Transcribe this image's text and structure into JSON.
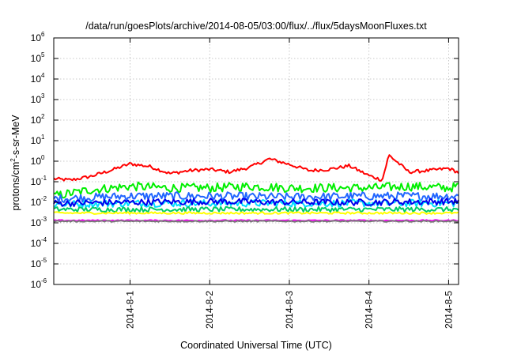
{
  "chart_data": {
    "type": "line",
    "title": "/data/run/goesPlots/archive/2014-08-05/03:00/flux/../flux/5daysMoonFluxes.txt",
    "xlabel": "Coordinated Universal Time (UTC)",
    "ylabel_parts": [
      "protons/cm",
      "2",
      "-s-sr-MeV"
    ],
    "yscale": "log",
    "ylim": [
      1e-06,
      1000000.0
    ],
    "y_ticks": [
      {
        "base": "10",
        "exp": "-6",
        "value": 1e-06
      },
      {
        "base": "10",
        "exp": "-5",
        "value": 1e-05
      },
      {
        "base": "10",
        "exp": "-4",
        "value": 0.0001
      },
      {
        "base": "10",
        "exp": "-3",
        "value": 0.001
      },
      {
        "base": "10",
        "exp": "-2",
        "value": 0.01
      },
      {
        "base": "10",
        "exp": "-1",
        "value": 0.1
      },
      {
        "base": "10",
        "exp": "0",
        "value": 1
      },
      {
        "base": "10",
        "exp": "1",
        "value": 10
      },
      {
        "base": "10",
        "exp": "2",
        "value": 100
      },
      {
        "base": "10",
        "exp": "3",
        "value": 1000
      },
      {
        "base": "10",
        "exp": "4",
        "value": 10000
      },
      {
        "base": "10",
        "exp": "5",
        "value": 100000
      },
      {
        "base": "10",
        "exp": "6",
        "value": 1000000
      }
    ],
    "xlim": [
      "2014-07-31T01:00",
      "2014-08-05T03:00"
    ],
    "x_ticks": [
      {
        "label": "2014-8-1",
        "value": "2014-08-01T00:00"
      },
      {
        "label": "2014-8-2",
        "value": "2014-08-02T00:00"
      },
      {
        "label": "2014-8-3",
        "value": "2014-08-03T00:00"
      },
      {
        "label": "2014-8-4",
        "value": "2014-08-04T00:00"
      },
      {
        "label": "2014-8-5",
        "value": "2014-08-05T00:00"
      }
    ],
    "grid": true,
    "series": [
      {
        "color": "#ff0000",
        "points": [
          [
            "2014-07-31T01:00",
            0.14
          ],
          [
            "2014-07-31T06:00",
            0.12
          ],
          [
            "2014-07-31T12:00",
            0.18
          ],
          [
            "2014-07-31T18:00",
            0.35
          ],
          [
            "2014-08-01T00:00",
            0.75
          ],
          [
            "2014-08-01T06:00",
            0.55
          ],
          [
            "2014-08-01T12:00",
            0.25
          ],
          [
            "2014-08-01T18:00",
            0.35
          ],
          [
            "2014-08-02T00:00",
            0.4
          ],
          [
            "2014-08-02T06:00",
            0.3
          ],
          [
            "2014-08-02T12:00",
            0.5
          ],
          [
            "2014-08-02T18:00",
            1.3
          ],
          [
            "2014-08-03T00:00",
            0.7
          ],
          [
            "2014-08-03T06:00",
            0.35
          ],
          [
            "2014-08-03T12:00",
            0.4
          ],
          [
            "2014-08-03T18:00",
            0.6
          ],
          [
            "2014-08-04T00:00",
            0.2
          ],
          [
            "2014-08-04T04:00",
            0.12
          ],
          [
            "2014-08-04T06:00",
            2.0
          ],
          [
            "2014-08-04T12:00",
            0.3
          ],
          [
            "2014-08-04T18:00",
            0.35
          ],
          [
            "2014-08-05T00:00",
            0.45
          ],
          [
            "2014-08-05T03:00",
            0.28
          ]
        ]
      },
      {
        "color": "#00ee00",
        "points": [
          [
            "2014-07-31T01:00",
            0.02
          ],
          [
            "2014-07-31T12:00",
            0.04
          ],
          [
            "2014-08-01T00:00",
            0.06
          ],
          [
            "2014-08-01T12:00",
            0.05
          ],
          [
            "2014-08-02T00:00",
            0.05
          ],
          [
            "2014-08-02T12:00",
            0.06
          ],
          [
            "2014-08-03T00:00",
            0.05
          ],
          [
            "2014-08-03T12:00",
            0.05
          ],
          [
            "2014-08-04T00:00",
            0.05
          ],
          [
            "2014-08-04T12:00",
            0.06
          ],
          [
            "2014-08-05T00:00",
            0.05
          ],
          [
            "2014-08-05T03:00",
            0.06
          ]
        ]
      },
      {
        "color": "#2266ff",
        "points": [
          [
            "2014-07-31T01:00",
            0.015
          ],
          [
            "2014-08-01T00:00",
            0.02
          ],
          [
            "2014-08-02T00:00",
            0.02
          ],
          [
            "2014-08-03T00:00",
            0.018
          ],
          [
            "2014-08-04T00:00",
            0.02
          ],
          [
            "2014-08-05T00:00",
            0.02
          ],
          [
            "2014-08-05T03:00",
            0.02
          ]
        ]
      },
      {
        "color": "#00ddff",
        "points": [
          [
            "2014-07-31T01:00",
            0.008
          ],
          [
            "2014-08-01T00:00",
            0.009
          ],
          [
            "2014-08-02T00:00",
            0.009
          ],
          [
            "2014-08-03T00:00",
            0.009
          ],
          [
            "2014-08-04T00:00",
            0.009
          ],
          [
            "2014-08-05T00:00",
            0.009
          ],
          [
            "2014-08-05T03:00",
            0.009
          ]
        ]
      },
      {
        "color": "#0000ee",
        "points": [
          [
            "2014-07-31T01:00",
            0.009
          ],
          [
            "2014-08-01T00:00",
            0.01
          ],
          [
            "2014-08-02T00:00",
            0.011
          ],
          [
            "2014-08-03T00:00",
            0.01
          ],
          [
            "2014-08-04T00:00",
            0.01
          ],
          [
            "2014-08-05T00:00",
            0.011
          ],
          [
            "2014-08-05T03:00",
            0.011
          ]
        ]
      },
      {
        "color": "#00cc66",
        "points": [
          [
            "2014-07-31T01:00",
            0.0045
          ],
          [
            "2014-08-01T00:00",
            0.0045
          ],
          [
            "2014-08-02T00:00",
            0.0045
          ],
          [
            "2014-08-03T00:00",
            0.0045
          ],
          [
            "2014-08-04T00:00",
            0.0045
          ],
          [
            "2014-08-05T00:00",
            0.0045
          ],
          [
            "2014-08-05T03:00",
            0.0045
          ]
        ]
      },
      {
        "color": "#ffff00",
        "points": [
          [
            "2014-07-31T01:00",
            0.003
          ],
          [
            "2014-08-01T00:00",
            0.003
          ],
          [
            "2014-08-02T00:00",
            0.003
          ],
          [
            "2014-08-03T00:00",
            0.003
          ],
          [
            "2014-08-04T00:00",
            0.003
          ],
          [
            "2014-08-05T00:00",
            0.003
          ],
          [
            "2014-08-05T03:00",
            0.003
          ]
        ]
      },
      {
        "color": "#ff00ff",
        "points": [
          [
            "2014-07-31T01:00",
            0.0013
          ],
          [
            "2014-08-01T00:00",
            0.0013
          ],
          [
            "2014-08-02T00:00",
            0.0013
          ],
          [
            "2014-08-03T00:00",
            0.0013
          ],
          [
            "2014-08-04T00:00",
            0.0013
          ],
          [
            "2014-08-05T00:00",
            0.0013
          ],
          [
            "2014-08-05T03:00",
            0.0013
          ]
        ]
      },
      {
        "color": "#777777",
        "points": [
          [
            "2014-07-31T01:00",
            0.0012
          ],
          [
            "2014-08-01T00:00",
            0.0012
          ],
          [
            "2014-08-02T00:00",
            0.0012
          ],
          [
            "2014-08-03T00:00",
            0.0012
          ],
          [
            "2014-08-04T00:00",
            0.0012
          ],
          [
            "2014-08-05T00:00",
            0.0012
          ],
          [
            "2014-08-05T03:00",
            0.0012
          ]
        ]
      }
    ]
  }
}
